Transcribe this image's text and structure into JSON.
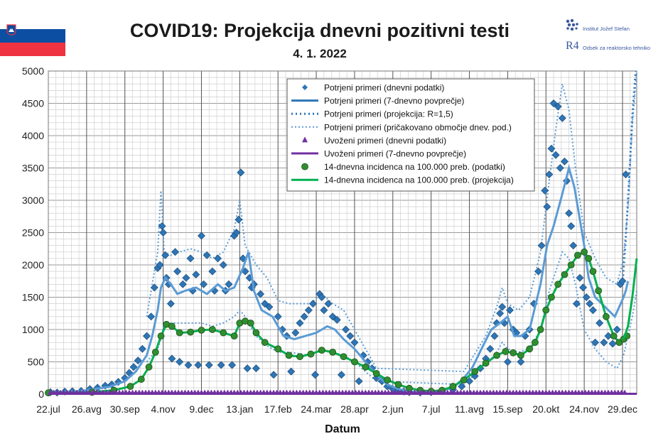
{
  "header": {
    "title": "COVID19: Projekcija dnevni pozitivni testi",
    "date": "4. 1. 2022"
  },
  "logos": {
    "ijs_name": "Institut Jožef Stefan",
    "r4_mark": "R4",
    "r4_name": "Odsek za reaktorsko tehniko"
  },
  "colors": {
    "series_blue": "#2e75b6",
    "light_blue": "#5b9bd5",
    "purple": "#7030a0",
    "green": "#00b050",
    "green_marker": "#2f8f2f",
    "flag_white": "#ffffff",
    "flag_blue": "#0b4ea2",
    "flag_red": "#ef3340"
  },
  "chart_data": {
    "type": "line",
    "title": "COVID19: Projekcija dnevni pozitivni testi",
    "subtitle": "4. 1. 2022",
    "xlabel": "Datum",
    "ylabel": "",
    "ylim": [
      0,
      5000
    ],
    "yticks": [
      0,
      500,
      1000,
      1500,
      2000,
      2500,
      3000,
      3500,
      4000,
      4500,
      5000
    ],
    "x_unit": "days since 22.jul 2020",
    "xlim": [
      0,
      538
    ],
    "xticks": [
      {
        "label": "22.jul",
        "day": 0
      },
      {
        "label": "26.avg",
        "day": 35
      },
      {
        "label": "30.sep",
        "day": 70
      },
      {
        "label": "4.nov",
        "day": 105
      },
      {
        "label": "9.dec",
        "day": 140
      },
      {
        "label": "13.jan",
        "day": 175
      },
      {
        "label": "17.feb",
        "day": 210
      },
      {
        "label": "24.mar",
        "day": 245
      },
      {
        "label": "28.apr",
        "day": 280
      },
      {
        "label": "2.jun",
        "day": 315
      },
      {
        "label": "7.jul",
        "day": 350
      },
      {
        "label": "11.avg",
        "day": 385
      },
      {
        "label": "15.sep",
        "day": 420
      },
      {
        "label": "20.okt",
        "day": 455
      },
      {
        "label": "24.nov",
        "day": 490
      },
      {
        "label": "29.dec",
        "day": 525
      }
    ],
    "legend": [
      "Potrjeni primeri (dnevni podatki)",
      "Potrjeni primeri (7-dnevno povprečje)",
      "Potrjeni primeri (projekcija: R=1,5)",
      "Potrjeni primeri (pričakovano območje dnev. pod.)",
      "Uvoženi primeri (dnevni podatki)",
      "Uvoženi primeri (7-dnevno povprečje)",
      "14-dnevna incidenca na 100.000 preb. (podatki)",
      "14-dnevna incidenca na 100.000 preb. (projekcija)"
    ],
    "legend_position": "top-center",
    "series": [
      {
        "name": "Potrjeni primeri (7-dnevno povprečje)",
        "x": [
          0,
          30,
          55,
          70,
          80,
          90,
          95,
          100,
          103,
          107,
          112,
          118,
          125,
          135,
          145,
          155,
          162,
          170,
          178,
          183,
          188,
          195,
          205,
          215,
          225,
          235,
          245,
          255,
          262,
          270,
          280,
          290,
          300,
          310,
          320,
          330,
          340,
          350,
          360,
          370,
          380,
          388,
          396,
          405,
          413,
          420,
          426,
          432,
          440,
          450,
          456,
          462,
          470,
          476,
          481,
          486,
          490,
          494,
          500,
          506,
          512,
          518,
          522,
          526,
          528,
          530
        ],
        "values": [
          20,
          50,
          110,
          200,
          350,
          600,
          900,
          1300,
          1650,
          1800,
          1700,
          1550,
          1600,
          1650,
          1550,
          1700,
          1600,
          1650,
          1950,
          2200,
          1600,
          1300,
          1200,
          900,
          850,
          900,
          950,
          1050,
          1000,
          850,
          700,
          500,
          300,
          150,
          80,
          40,
          30,
          40,
          60,
          100,
          250,
          420,
          700,
          1000,
          1100,
          1200,
          900,
          900,
          1000,
          1700,
          2300,
          2600,
          3100,
          3500,
          3200,
          2700,
          2300,
          1800,
          1500,
          1400,
          1300,
          1200,
          1350,
          1500,
          1600,
          1750
        ]
      },
      {
        "name": "Potrjeni primeri (projekcija: R=1,5)",
        "x": [
          525,
          528,
          531,
          534,
          537
        ],
        "values": [
          1700,
          2400,
          3300,
          4300,
          5000
        ]
      },
      {
        "name": "14-dnevna incidenca na 100.000 preb. (podatki)",
        "x": [
          0,
          40,
          60,
          75,
          85,
          92,
          98,
          103,
          108,
          113,
          120,
          130,
          140,
          150,
          160,
          170,
          175,
          180,
          185,
          190,
          198,
          210,
          220,
          230,
          240,
          250,
          260,
          270,
          280,
          290,
          300,
          310,
          320,
          330,
          340,
          350,
          360,
          370,
          380,
          390,
          400,
          410,
          418,
          425,
          432,
          440,
          445,
          450,
          455,
          460,
          466,
          472,
          478,
          484,
          490,
          494,
          498,
          503,
          510,
          517,
          522,
          526,
          529
        ],
        "values": [
          20,
          30,
          60,
          120,
          230,
          420,
          650,
          900,
          1080,
          1050,
          950,
          960,
          990,
          1000,
          950,
          900,
          1100,
          1130,
          1100,
          950,
          800,
          700,
          600,
          580,
          620,
          680,
          650,
          580,
          500,
          420,
          320,
          220,
          150,
          90,
          60,
          45,
          60,
          120,
          220,
          350,
          480,
          600,
          660,
          640,
          600,
          700,
          800,
          1000,
          1300,
          1500,
          1700,
          1850,
          2000,
          2150,
          2200,
          2100,
          1900,
          1600,
          1200,
          900,
          800,
          850,
          900
        ]
      },
      {
        "name": "14-dnevna incidenca na 100.000 preb. (projekcija)",
        "x": [
          526,
          530,
          534,
          538
        ],
        "values": [
          850,
          1050,
          1500,
          2100
        ]
      },
      {
        "name": "Uvoženi primeri (7-dnevno povprečje)",
        "x": [
          0,
          538
        ],
        "values": [
          5,
          5
        ]
      }
    ],
    "scatter_daily": {
      "name": "Potrjeni primeri (dnevni podatki)",
      "points": [
        [
          2,
          30
        ],
        [
          8,
          25
        ],
        [
          15,
          40
        ],
        [
          22,
          45
        ],
        [
          30,
          50
        ],
        [
          38,
          80
        ],
        [
          45,
          100
        ],
        [
          52,
          130
        ],
        [
          58,
          150
        ],
        [
          64,
          190
        ],
        [
          70,
          250
        ],
        [
          74,
          330
        ],
        [
          78,
          420
        ],
        [
          82,
          520
        ],
        [
          86,
          700
        ],
        [
          90,
          900
        ],
        [
          94,
          1200
        ],
        [
          97,
          1650
        ],
        [
          100,
          1950
        ],
        [
          102,
          2000
        ],
        [
          104,
          2600
        ],
        [
          105,
          2500
        ],
        [
          107,
          2150
        ],
        [
          108,
          1800
        ],
        [
          110,
          1700
        ],
        [
          112,
          1400
        ],
        [
          113,
          550
        ],
        [
          116,
          2200
        ],
        [
          118,
          1900
        ],
        [
          120,
          500
        ],
        [
          123,
          1700
        ],
        [
          126,
          1800
        ],
        [
          128,
          450
        ],
        [
          130,
          2100
        ],
        [
          132,
          1600
        ],
        [
          135,
          1850
        ],
        [
          137,
          450
        ],
        [
          140,
          2450
        ],
        [
          142,
          1700
        ],
        [
          145,
          2150
        ],
        [
          147,
          450
        ],
        [
          150,
          1900
        ],
        [
          152,
          1600
        ],
        [
          155,
          2100
        ],
        [
          158,
          450
        ],
        [
          160,
          2000
        ],
        [
          162,
          1600
        ],
        [
          165,
          1700
        ],
        [
          168,
          450
        ],
        [
          170,
          2450
        ],
        [
          172,
          2500
        ],
        [
          174,
          2700
        ],
        [
          176,
          3430
        ],
        [
          178,
          2100
        ],
        [
          180,
          1900
        ],
        [
          182,
          400
        ],
        [
          184,
          1800
        ],
        [
          186,
          1650
        ],
        [
          188,
          1700
        ],
        [
          190,
          400
        ],
        [
          194,
          1550
        ],
        [
          198,
          1400
        ],
        [
          202,
          1350
        ],
        [
          206,
          300
        ],
        [
          210,
          1200
        ],
        [
          214,
          1000
        ],
        [
          218,
          900
        ],
        [
          222,
          350
        ],
        [
          226,
          950
        ],
        [
          230,
          1100
        ],
        [
          234,
          1200
        ],
        [
          238,
          1300
        ],
        [
          242,
          1400
        ],
        [
          244,
          300
        ],
        [
          248,
          1550
        ],
        [
          250,
          1500
        ],
        [
          252,
          1300
        ],
        [
          256,
          1400
        ],
        [
          260,
          1200
        ],
        [
          264,
          1150
        ],
        [
          268,
          300
        ],
        [
          272,
          1000
        ],
        [
          276,
          900
        ],
        [
          280,
          800
        ],
        [
          284,
          200
        ],
        [
          288,
          600
        ],
        [
          292,
          500
        ],
        [
          296,
          400
        ],
        [
          300,
          250
        ],
        [
          305,
          200
        ],
        [
          310,
          120
        ],
        [
          315,
          80
        ],
        [
          320,
          60
        ],
        [
          325,
          40
        ],
        [
          330,
          30
        ],
        [
          340,
          25
        ],
        [
          350,
          30
        ],
        [
          360,
          45
        ],
        [
          370,
          70
        ],
        [
          378,
          120
        ],
        [
          385,
          200
        ],
        [
          390,
          280
        ],
        [
          395,
          400
        ],
        [
          400,
          550
        ],
        [
          404,
          700
        ],
        [
          408,
          900
        ],
        [
          410,
          1100
        ],
        [
          413,
          1250
        ],
        [
          415,
          1350
        ],
        [
          417,
          1100
        ],
        [
          420,
          500
        ],
        [
          422,
          1300
        ],
        [
          425,
          1000
        ],
        [
          428,
          950
        ],
        [
          432,
          500
        ],
        [
          436,
          900
        ],
        [
          440,
          1000
        ],
        [
          444,
          1400
        ],
        [
          448,
          1900
        ],
        [
          451,
          2300
        ],
        [
          454,
          3150
        ],
        [
          456,
          2900
        ],
        [
          458,
          3400
        ],
        [
          460,
          3800
        ],
        [
          462,
          4500
        ],
        [
          464,
          3700
        ],
        [
          466,
          4450
        ],
        [
          468,
          3500
        ],
        [
          470,
          4270
        ],
        [
          472,
          3600
        ],
        [
          474,
          3300
        ],
        [
          476,
          2800
        ],
        [
          478,
          2600
        ],
        [
          480,
          2300
        ],
        [
          483,
          1400
        ],
        [
          486,
          1800
        ],
        [
          489,
          1650
        ],
        [
          492,
          1500
        ],
        [
          495,
          1400
        ],
        [
          498,
          1300
        ],
        [
          500,
          800
        ],
        [
          504,
          1100
        ],
        [
          508,
          800
        ],
        [
          512,
          900
        ],
        [
          516,
          780
        ],
        [
          520,
          1000
        ],
        [
          523,
          1700
        ],
        [
          525,
          1750
        ],
        [
          528,
          3400
        ]
      ]
    },
    "scatter_incidence": {
      "name": "14-dnevna incidenca na 100.000 preb. (podatki)"
    },
    "imported": {
      "name": "Uvoženi primeri (dnevni podatki)",
      "value": 15
    },
    "band": {
      "name": "Potrjeni primeri (pričakovano območje dnev. pod.)",
      "x": [
        90,
        100,
        103,
        106,
        112,
        120,
        130,
        140,
        150,
        160,
        170,
        175,
        180,
        190,
        200,
        210,
        220,
        240,
        250,
        260,
        270,
        280,
        290,
        300,
        380,
        400,
        410,
        415,
        420,
        430,
        440,
        450,
        458,
        464,
        470,
        476,
        482,
        490,
        500,
        510,
        520,
        526,
        530,
        534,
        538
      ],
      "upper": [
        1200,
        2200,
        3150,
        2200,
        2150,
        2200,
        2250,
        2200,
        2100,
        2200,
        2550,
        3000,
        2300,
        2000,
        1800,
        1450,
        1400,
        1400,
        1550,
        1400,
        1300,
        1000,
        700,
        400,
        350,
        900,
        1350,
        1650,
        1400,
        1300,
        1500,
        2200,
        3300,
        4100,
        4800,
        4400,
        3500,
        2500,
        2100,
        1800,
        1700,
        2100,
        2900,
        4200,
        5000
      ],
      "lower": [
        500,
        700,
        850,
        1100,
        1100,
        1100,
        1100,
        1100,
        1050,
        1100,
        1200,
        1300,
        1200,
        900,
        750,
        650,
        650,
        600,
        700,
        650,
        600,
        500,
        350,
        200,
        150,
        450,
        650,
        800,
        700,
        650,
        700,
        1000,
        1600,
        1900,
        2200,
        2100,
        1700,
        1000,
        700,
        500,
        400,
        600,
        900,
        1200,
        1600
      ]
    }
  }
}
